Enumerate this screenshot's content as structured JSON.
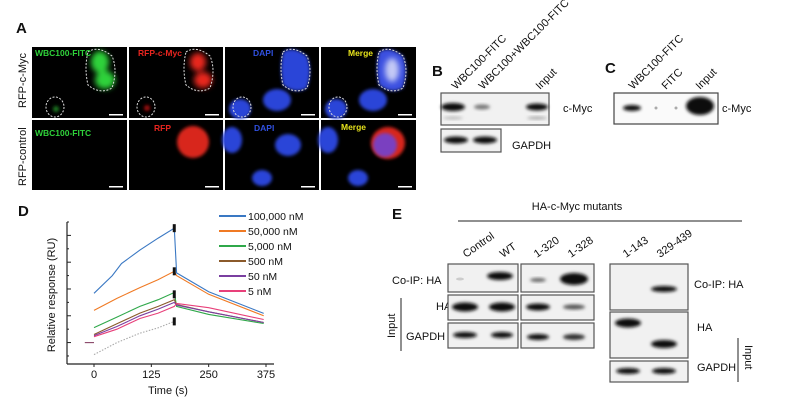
{
  "panel_a": {
    "label": "A",
    "row_labels": [
      "RFP-c-Myc",
      "RFP-control"
    ],
    "row1_channels": [
      "WBC100-FITC",
      "RFP-c-Myc",
      "DAPI",
      "Merge"
    ],
    "row2_channels": [
      "WBC100-FITC",
      "RFP",
      "DAPI",
      "Merge"
    ],
    "colors": {
      "fitc": "#2fd23a",
      "rfp": "#e8251f",
      "dapi": "#2b45d8",
      "merge_label": "#e6e21c"
    }
  },
  "panel_b": {
    "label": "B",
    "lanes": [
      "WBC100-FITC",
      "WBC100+WBC100-FITC",
      "Input"
    ],
    "blots": [
      "c-Myc",
      "GAPDH"
    ]
  },
  "panel_c": {
    "label": "C",
    "lanes": [
      "WBC100-FITC",
      "FITC",
      "Input"
    ],
    "blots": [
      "c-Myc"
    ]
  },
  "panel_e": {
    "label": "E",
    "title": "HA-c-Myc mutants",
    "lanes_left": [
      "Control",
      "WT",
      "1-320",
      "1-328"
    ],
    "lanes_right": [
      "1-143",
      "329-439"
    ],
    "rows": [
      "Co-IP: HA",
      "HA",
      "GAPDH"
    ],
    "group_label": "Input"
  },
  "chart_data": {
    "panel_label": "D",
    "type": "line",
    "xlabel": "Time (s)",
    "ylabel": "Relative response (RU)",
    "xticks": [
      0,
      125,
      250,
      375
    ],
    "xlim": [
      -30,
      390
    ],
    "ylim": [
      -0.8,
      4.5
    ],
    "y_tick_labels_shown": false,
    "grid": false,
    "legend_placement": "top-right",
    "series": [
      {
        "name": "100,000 nM",
        "color": "#3a78c3",
        "points": [
          [
            0,
            1.84
          ],
          [
            40,
            2.5
          ],
          [
            60,
            2.95
          ],
          [
            100,
            3.45
          ],
          [
            140,
            3.9
          ],
          [
            175,
            4.27
          ],
          [
            180,
            2.6
          ],
          [
            250,
            1.9
          ],
          [
            370,
            1.09
          ]
        ]
      },
      {
        "name": "50,000 nM",
        "color": "#f07a24",
        "points": [
          [
            0,
            1.2
          ],
          [
            50,
            1.65
          ],
          [
            100,
            2.05
          ],
          [
            140,
            2.35
          ],
          [
            175,
            2.66
          ],
          [
            180,
            2.5
          ],
          [
            250,
            1.8
          ],
          [
            370,
            1.0
          ]
        ]
      },
      {
        "name": "5,000 nM",
        "color": "#2fa84a",
        "points": [
          [
            0,
            0.56
          ],
          [
            50,
            0.95
          ],
          [
            100,
            1.35
          ],
          [
            140,
            1.6
          ],
          [
            175,
            1.87
          ],
          [
            180,
            1.35
          ],
          [
            250,
            1.05
          ],
          [
            370,
            0.71
          ]
        ]
      },
      {
        "name": "500 nM",
        "color": "#8b5a2b",
        "points": [
          [
            0,
            0.3
          ],
          [
            50,
            0.7
          ],
          [
            100,
            1.1
          ],
          [
            140,
            1.35
          ],
          [
            175,
            1.6
          ],
          [
            180,
            1.42
          ],
          [
            250,
            1.15
          ],
          [
            370,
            0.75
          ]
        ]
      },
      {
        "name": "50 nM",
        "color": "#7a3fa0",
        "points": [
          [
            0,
            0.26
          ],
          [
            50,
            0.6
          ],
          [
            100,
            1.0
          ],
          [
            140,
            1.25
          ],
          [
            175,
            1.5
          ],
          [
            180,
            1.4
          ],
          [
            250,
            1.15
          ],
          [
            370,
            0.75
          ]
        ]
      },
      {
        "name": "5 nM",
        "color": "#e8407a",
        "points": [
          [
            0,
            0.22
          ],
          [
            50,
            0.5
          ],
          [
            100,
            0.9
          ],
          [
            140,
            1.1
          ],
          [
            175,
            1.35
          ],
          [
            180,
            1.46
          ],
          [
            250,
            1.3
          ],
          [
            370,
            0.86
          ]
        ]
      },
      {
        "name": "",
        "color": "#aaaaaa",
        "dashed": true,
        "points": [
          [
            0,
            -0.45
          ],
          [
            50,
            0.0
          ],
          [
            100,
            0.35
          ],
          [
            140,
            0.55
          ],
          [
            175,
            0.79
          ]
        ]
      },
      {
        "name": "",
        "color": "#884466",
        "points": [
          [
            -20,
            0
          ],
          [
            0,
            0
          ]
        ]
      }
    ]
  }
}
